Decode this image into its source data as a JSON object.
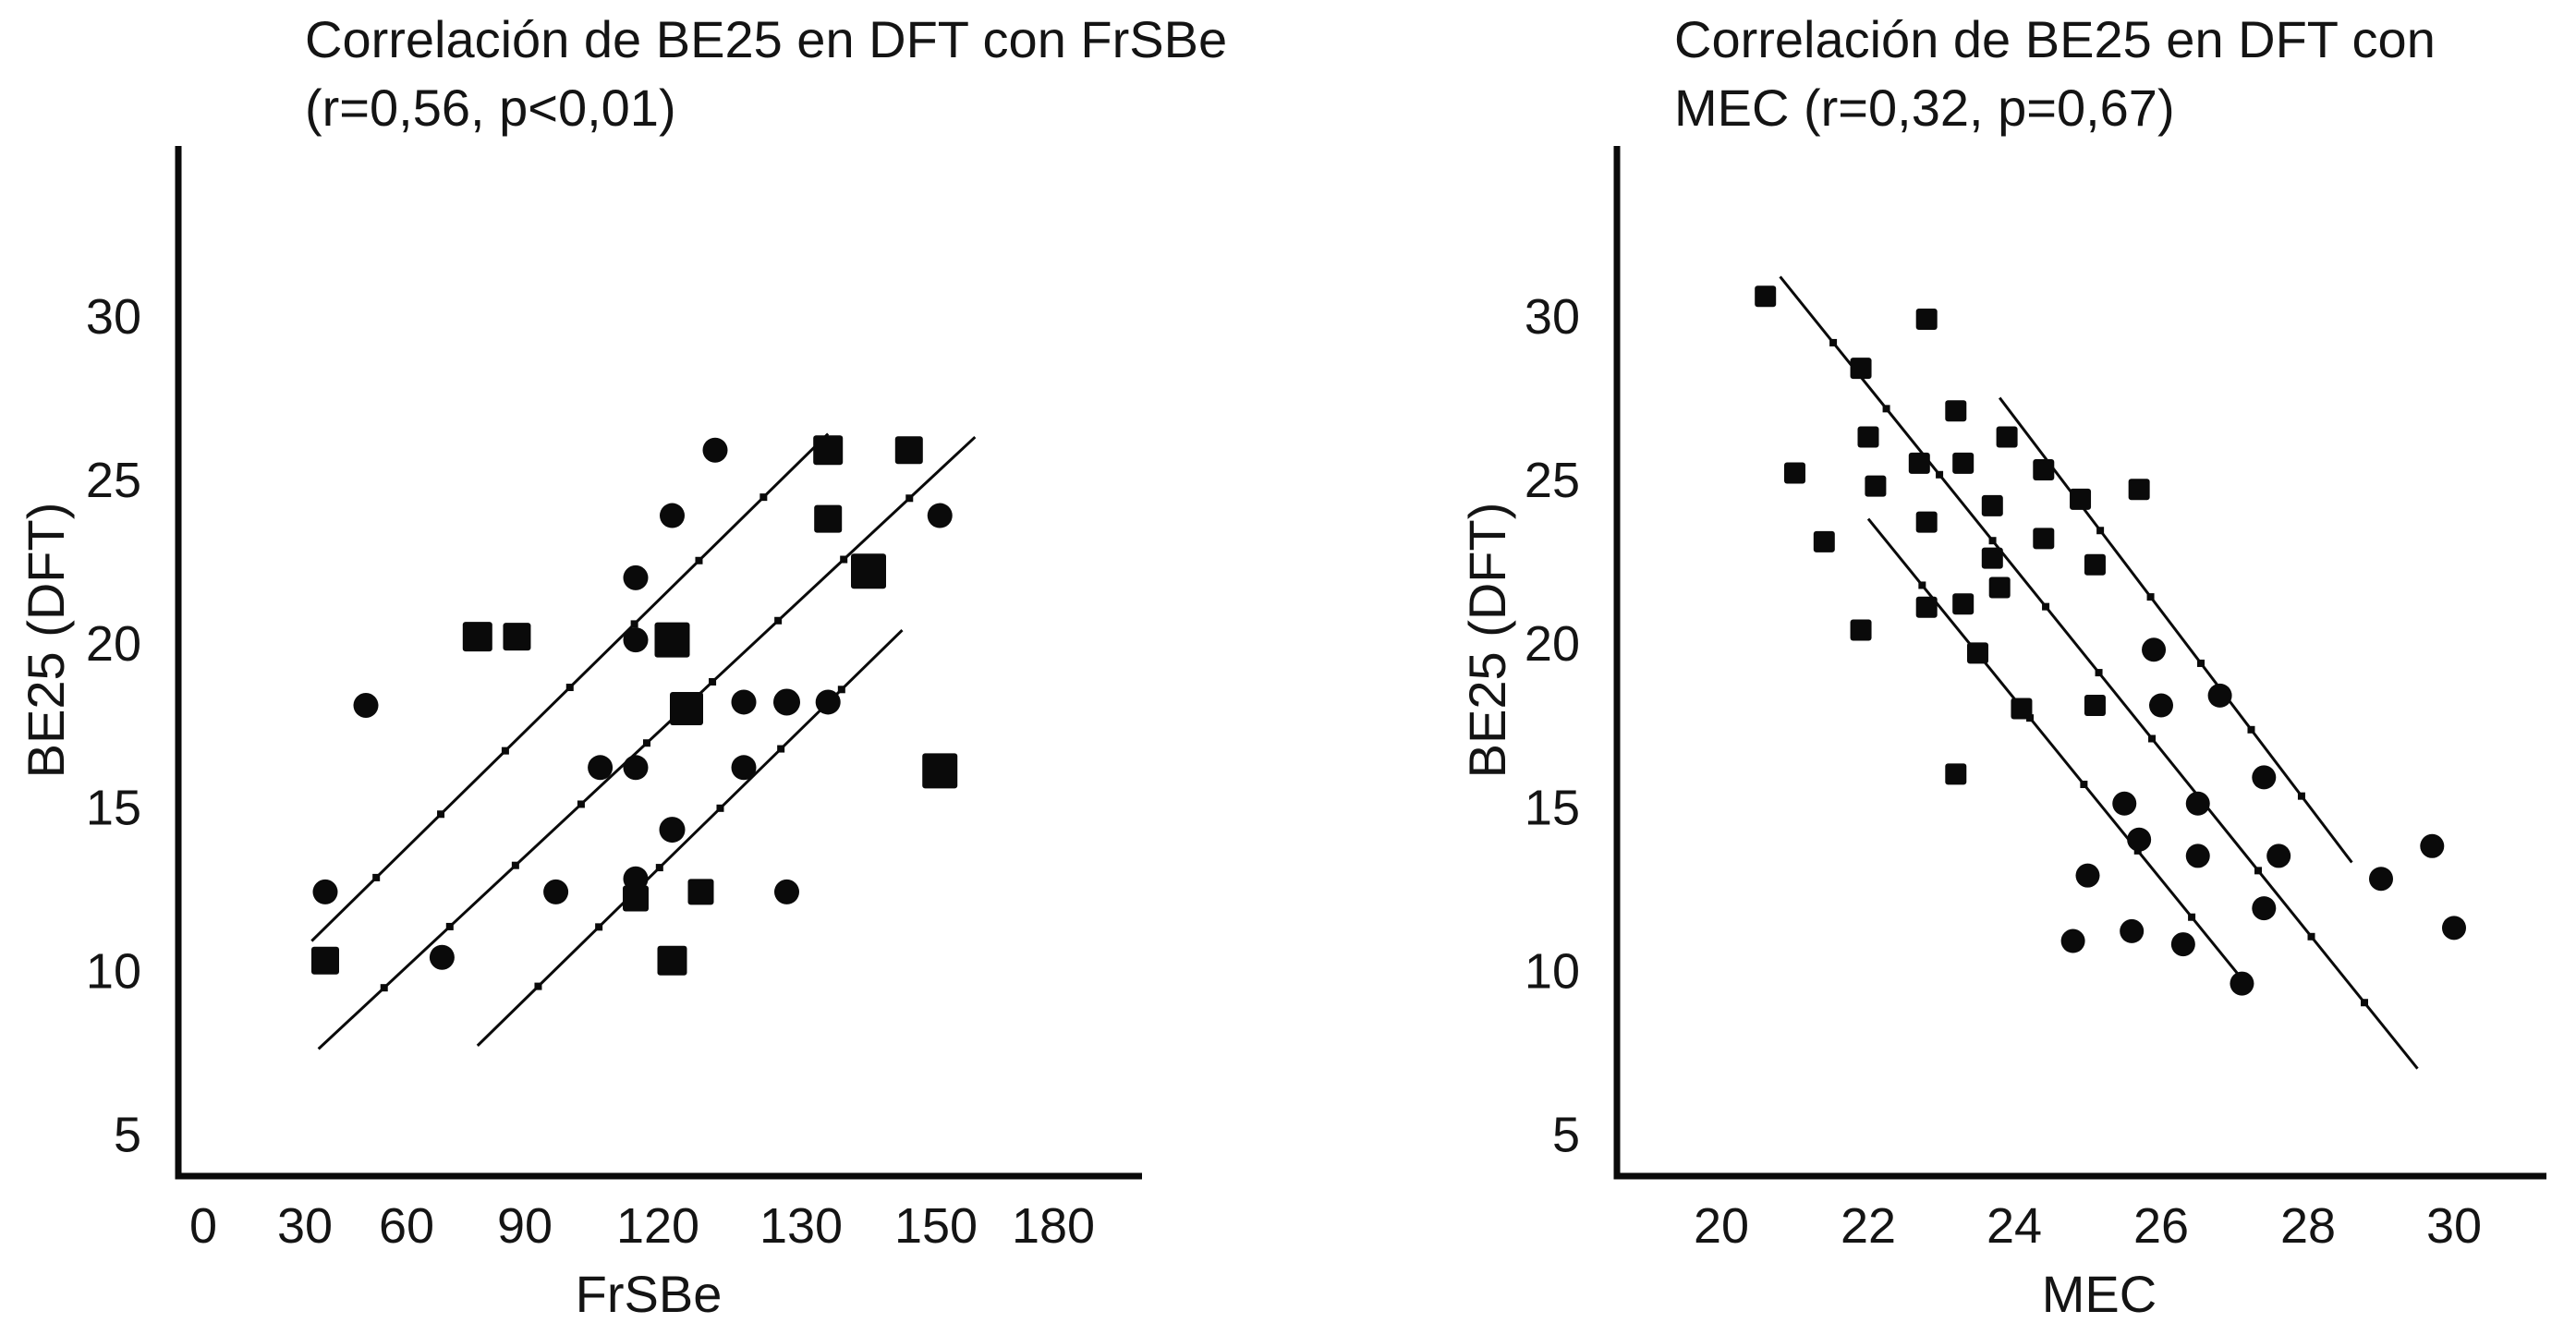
{
  "page": {
    "background": "#ffffff",
    "ink_color": "#0a0a0a"
  },
  "chart_data": [
    {
      "id": "frsbe-scatter",
      "type": "scatter",
      "title_line1": "Correlación de BE25 en DFT con FrSBe",
      "title_line2": "(r=0,56, p<0,01)",
      "stats": {
        "r": "0,56",
        "p": "<0,01"
      },
      "xlabel": "FrSBe",
      "ylabel": "BE25 (DFT)",
      "x_ticks": [
        0,
        30,
        60,
        90,
        120,
        130,
        150,
        180
      ],
      "y_ticks": [
        30,
        25,
        20,
        15,
        10,
        5
      ],
      "ylim": [
        5,
        30
      ],
      "grid": false,
      "legend": null,
      "points": [
        {
          "x": 48,
          "y": 18.1,
          "marker": "circle",
          "size": 27
        },
        {
          "x": 36,
          "y": 12.4,
          "marker": "circle",
          "size": 27
        },
        {
          "x": 69,
          "y": 10.4,
          "marker": "circle",
          "size": 27
        },
        {
          "x": 97,
          "y": 12.4,
          "marker": "circle",
          "size": 27
        },
        {
          "x": 107,
          "y": 16.2,
          "marker": "circle",
          "size": 27
        },
        {
          "x": 115,
          "y": 16.2,
          "marker": "circle",
          "size": 27
        },
        {
          "x": 115,
          "y": 22.0,
          "marker": "circle",
          "size": 27
        },
        {
          "x": 115,
          "y": 20.1,
          "marker": "circle",
          "size": 27
        },
        {
          "x": 115,
          "y": 12.8,
          "marker": "circle",
          "size": 27
        },
        {
          "x": 121,
          "y": 23.9,
          "marker": "circle",
          "size": 27
        },
        {
          "x": 124,
          "y": 25.9,
          "marker": "circle",
          "size": 27
        },
        {
          "x": 121,
          "y": 14.3,
          "marker": "circle",
          "size": 28
        },
        {
          "x": 126,
          "y": 18.2,
          "marker": "circle",
          "size": 27
        },
        {
          "x": 129,
          "y": 18.2,
          "marker": "circle",
          "size": 29
        },
        {
          "x": 134,
          "y": 18.2,
          "marker": "circle",
          "size": 27
        },
        {
          "x": 126,
          "y": 16.2,
          "marker": "circle",
          "size": 27
        },
        {
          "x": 129,
          "y": 12.4,
          "marker": "circle",
          "size": 27
        },
        {
          "x": 151,
          "y": 23.9,
          "marker": "circle",
          "size": 27
        },
        {
          "x": 36,
          "y": 10.3,
          "marker": "square",
          "size": 30
        },
        {
          "x": 78,
          "y": 20.2,
          "marker": "square",
          "size": 32
        },
        {
          "x": 88,
          "y": 20.2,
          "marker": "square",
          "size": 30
        },
        {
          "x": 121,
          "y": 20.1,
          "marker": "square",
          "size": 38
        },
        {
          "x": 122,
          "y": 18.0,
          "marker": "square",
          "size": 36
        },
        {
          "x": 115,
          "y": 12.2,
          "marker": "square",
          "size": 28
        },
        {
          "x": 123,
          "y": 12.4,
          "marker": "square",
          "size": 28
        },
        {
          "x": 121,
          "y": 10.3,
          "marker": "square",
          "size": 32
        },
        {
          "x": 134,
          "y": 25.9,
          "marker": "square",
          "size": 32
        },
        {
          "x": 146,
          "y": 25.9,
          "marker": "square",
          "size": 30
        },
        {
          "x": 134,
          "y": 23.8,
          "marker": "square",
          "size": 30
        },
        {
          "x": 140,
          "y": 22.2,
          "marker": "square",
          "size": 38
        },
        {
          "x": 151,
          "y": 16.1,
          "marker": "square",
          "size": 38
        }
      ],
      "fit_lines": [
        {
          "name": "regression-fit",
          "x1": 34,
          "y1": 7.6,
          "x2": 160,
          "y2": 26.3
        },
        {
          "name": "confidence-upper",
          "x1": 32,
          "y1": 10.9,
          "x2": 134,
          "y2": 26.4
        },
        {
          "name": "confidence-lower",
          "x1": 78,
          "y1": 7.7,
          "x2": 145,
          "y2": 20.4
        }
      ]
    },
    {
      "id": "mec-scatter",
      "type": "scatter",
      "title_line1": "Correlación de BE25 en DFT con",
      "title_line2": "MEC (r=0,32, p=0,67)",
      "stats": {
        "r": "0,32",
        "p": "=0,67"
      },
      "xlabel": "MEC",
      "ylabel": "BE25 (DFT)",
      "x_ticks": [
        20,
        22,
        24,
        26,
        28,
        30
      ],
      "y_ticks": [
        30,
        25,
        20,
        15,
        10,
        5
      ],
      "ylim": [
        5,
        30
      ],
      "grid": false,
      "legend": null,
      "points": [
        {
          "x": 20.6,
          "y": 30.6,
          "marker": "square",
          "size": 23
        },
        {
          "x": 22.8,
          "y": 29.9,
          "marker": "square",
          "size": 23
        },
        {
          "x": 21.9,
          "y": 28.4,
          "marker": "square",
          "size": 23
        },
        {
          "x": 23.2,
          "y": 27.1,
          "marker": "square",
          "size": 23
        },
        {
          "x": 23.9,
          "y": 26.3,
          "marker": "square",
          "size": 23
        },
        {
          "x": 22.0,
          "y": 26.3,
          "marker": "square",
          "size": 23
        },
        {
          "x": 22.7,
          "y": 25.5,
          "marker": "square",
          "size": 23
        },
        {
          "x": 23.3,
          "y": 25.5,
          "marker": "square",
          "size": 23
        },
        {
          "x": 21.0,
          "y": 25.2,
          "marker": "square",
          "size": 23
        },
        {
          "x": 22.1,
          "y": 24.8,
          "marker": "square",
          "size": 23
        },
        {
          "x": 24.4,
          "y": 25.3,
          "marker": "square",
          "size": 23
        },
        {
          "x": 24.9,
          "y": 24.4,
          "marker": "square",
          "size": 23
        },
        {
          "x": 25.7,
          "y": 24.7,
          "marker": "square",
          "size": 23
        },
        {
          "x": 23.7,
          "y": 24.2,
          "marker": "square",
          "size": 23
        },
        {
          "x": 22.8,
          "y": 23.7,
          "marker": "square",
          "size": 23
        },
        {
          "x": 21.4,
          "y": 23.1,
          "marker": "square",
          "size": 23
        },
        {
          "x": 24.4,
          "y": 23.2,
          "marker": "square",
          "size": 23
        },
        {
          "x": 23.7,
          "y": 22.6,
          "marker": "square",
          "size": 23
        },
        {
          "x": 25.1,
          "y": 22.4,
          "marker": "square",
          "size": 23
        },
        {
          "x": 23.8,
          "y": 21.7,
          "marker": "square",
          "size": 23
        },
        {
          "x": 23.3,
          "y": 21.2,
          "marker": "square",
          "size": 23
        },
        {
          "x": 22.8,
          "y": 21.1,
          "marker": "square",
          "size": 23
        },
        {
          "x": 21.9,
          "y": 20.4,
          "marker": "square",
          "size": 23
        },
        {
          "x": 23.5,
          "y": 19.7,
          "marker": "square",
          "size": 23
        },
        {
          "x": 24.1,
          "y": 18.0,
          "marker": "square",
          "size": 23
        },
        {
          "x": 25.1,
          "y": 18.1,
          "marker": "square",
          "size": 23
        },
        {
          "x": 23.2,
          "y": 16.0,
          "marker": "square",
          "size": 23
        },
        {
          "x": 25.9,
          "y": 19.8,
          "marker": "circle",
          "size": 26
        },
        {
          "x": 26.8,
          "y": 18.4,
          "marker": "circle",
          "size": 26
        },
        {
          "x": 26.0,
          "y": 18.1,
          "marker": "circle",
          "size": 26
        },
        {
          "x": 27.4,
          "y": 15.9,
          "marker": "circle",
          "size": 26
        },
        {
          "x": 25.5,
          "y": 15.1,
          "marker": "circle",
          "size": 26
        },
        {
          "x": 26.5,
          "y": 15.1,
          "marker": "circle",
          "size": 26
        },
        {
          "x": 25.7,
          "y": 14.0,
          "marker": "circle",
          "size": 26
        },
        {
          "x": 29.7,
          "y": 13.8,
          "marker": "circle",
          "size": 26
        },
        {
          "x": 26.5,
          "y": 13.5,
          "marker": "circle",
          "size": 26
        },
        {
          "x": 27.6,
          "y": 13.5,
          "marker": "circle",
          "size": 26
        },
        {
          "x": 25.0,
          "y": 12.9,
          "marker": "circle",
          "size": 26
        },
        {
          "x": 29.0,
          "y": 12.8,
          "marker": "circle",
          "size": 26
        },
        {
          "x": 27.4,
          "y": 11.9,
          "marker": "circle",
          "size": 26
        },
        {
          "x": 25.6,
          "y": 11.2,
          "marker": "circle",
          "size": 26
        },
        {
          "x": 24.8,
          "y": 10.9,
          "marker": "circle",
          "size": 26
        },
        {
          "x": 26.3,
          "y": 10.8,
          "marker": "circle",
          "size": 26
        },
        {
          "x": 30.0,
          "y": 11.3,
          "marker": "circle",
          "size": 26
        },
        {
          "x": 27.1,
          "y": 9.6,
          "marker": "circle",
          "size": 26
        }
      ],
      "fit_lines": [
        {
          "name": "regression-fit",
          "x1": 20.8,
          "y1": 31.2,
          "x2": 29.5,
          "y2": 7.0
        },
        {
          "name": "confidence-left",
          "x1": 22.0,
          "y1": 23.8,
          "x2": 27.15,
          "y2": 9.6
        },
        {
          "name": "confidence-right",
          "x1": 23.8,
          "y1": 27.5,
          "x2": 28.6,
          "y2": 13.3
        }
      ]
    }
  ]
}
